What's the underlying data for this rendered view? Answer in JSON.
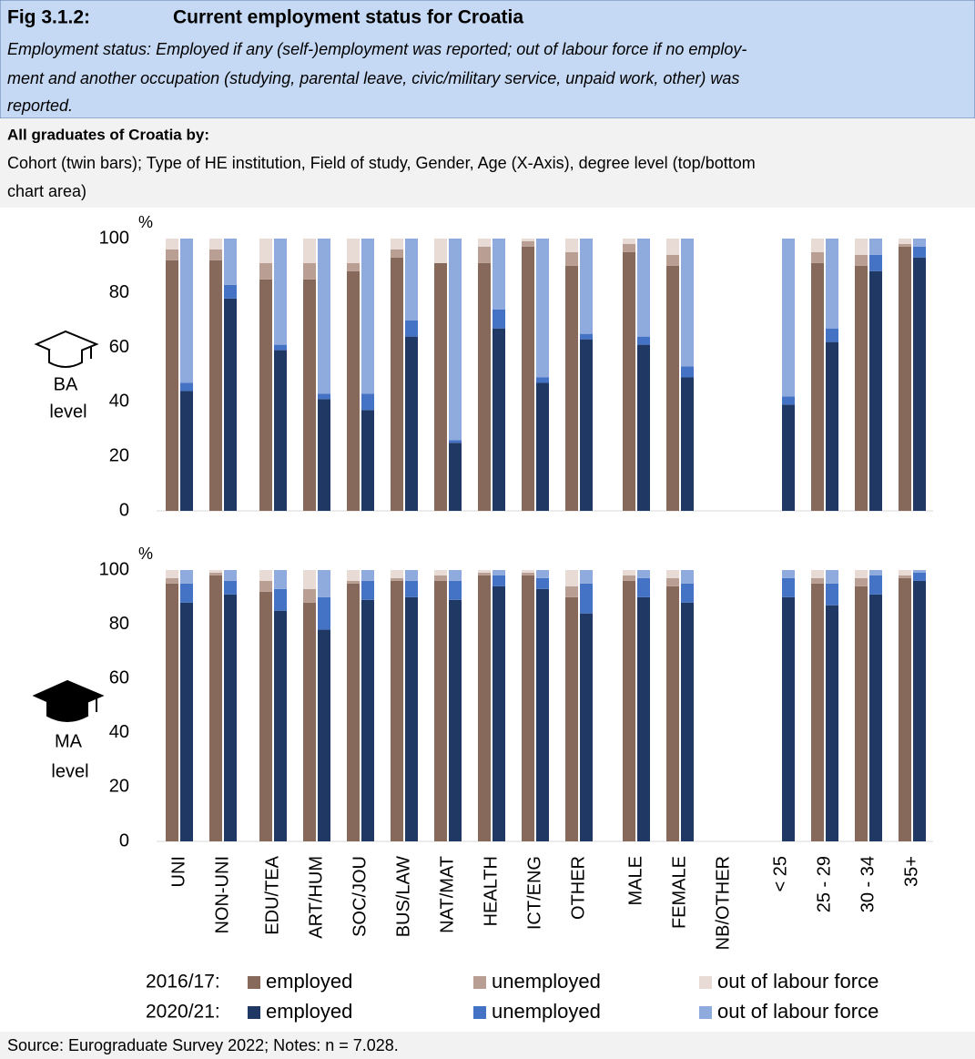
{
  "header": {
    "fig": "Fig 3.1.2:",
    "title": "Current employment status for Croatia",
    "subtitle_lines": [
      "Employment status: Employed if any (self-)employment was reported; out of labour force if no employ-",
      "ment and another occupation (studying, parental leave, civic/military service, unpaid work, other) was",
      "reported."
    ]
  },
  "description": {
    "heading": "All graduates of Croatia by:",
    "lines": [
      "Cohort (twin bars); Type of HE institution, Field of study, Gender, Age (X-Axis), degree level (top/bottom",
      "chart area)"
    ]
  },
  "chart_data": [
    {
      "type": "bar",
      "stacked": true,
      "label": [
        "BA",
        "level"
      ],
      "unit": "%",
      "ylim": [
        0,
        100
      ],
      "yticks": [
        0,
        20,
        40,
        60,
        80,
        100
      ],
      "cohorts": [
        {
          "label": "2016/17:",
          "series": [
            {
              "name": "employed",
              "color": "#87695c",
              "values": [
                92,
                92,
                85,
                85,
                88,
                93,
                91,
                91,
                97,
                90,
                95,
                90,
                null,
                null,
                91,
                90,
                97
              ]
            },
            {
              "name": "unemployed",
              "color": "#b99f93",
              "values": [
                4,
                4,
                6,
                6,
                3,
                3,
                0,
                6,
                2,
                5,
                3,
                4,
                null,
                null,
                4,
                4,
                1
              ]
            },
            {
              "name": "out of labour force",
              "color": "#e8dad5",
              "values": [
                4,
                4,
                9,
                9,
                9,
                4,
                9,
                3,
                1,
                5,
                2,
                6,
                null,
                null,
                5,
                6,
                2
              ]
            }
          ]
        },
        {
          "label": "2020/21:",
          "series": [
            {
              "name": "employed",
              "color": "#1f3864",
              "values": [
                44,
                78,
                59,
                41,
                37,
                64,
                25,
                67,
                47,
                63,
                61,
                49,
                null,
                39,
                62,
                88,
                93
              ]
            },
            {
              "name": "unemployed",
              "color": "#4472c4",
              "values": [
                3,
                5,
                2,
                2,
                6,
                6,
                1,
                7,
                2,
                2,
                3,
                4,
                null,
                3,
                5,
                6,
                4
              ]
            },
            {
              "name": "out of labour force",
              "color": "#8faadc",
              "values": [
                53,
                17,
                39,
                57,
                57,
                30,
                74,
                26,
                51,
                35,
                36,
                47,
                null,
                58,
                33,
                6,
                3
              ]
            }
          ]
        }
      ]
    },
    {
      "type": "bar",
      "stacked": true,
      "label": [
        "MA",
        "level"
      ],
      "unit": "%",
      "ylim": [
        0,
        100
      ],
      "yticks": [
        0,
        20,
        40,
        60,
        80,
        100
      ],
      "categories": [
        "UNI",
        "NON-UNI",
        "EDU/TEA",
        "ART/HUM",
        "SOC/JOU",
        "BUS/LAW",
        "NAT/MAT",
        "HEALTH",
        "ICT/ENG",
        "OTHER",
        "MALE",
        "FEMALE",
        "NB/OTHER",
        "< 25",
        "25 - 29",
        "30 - 34",
        "35+"
      ],
      "cohorts": [
        {
          "series": [
            {
              "color": "#87695c",
              "values": [
                95,
                98,
                92,
                88,
                95,
                96,
                96,
                98,
                98,
                90,
                96,
                94,
                null,
                null,
                95,
                94,
                97
              ]
            },
            {
              "color": "#b99f93",
              "values": [
                2,
                1,
                4,
                5,
                1,
                1,
                2,
                1,
                1,
                4,
                2,
                3,
                null,
                null,
                2,
                3,
                1
              ]
            },
            {
              "color": "#e8dad5",
              "values": [
                3,
                1,
                4,
                7,
                4,
                3,
                2,
                1,
                1,
                6,
                2,
                3,
                null,
                null,
                3,
                3,
                2
              ]
            }
          ]
        },
        {
          "series": [
            {
              "color": "#1f3864",
              "values": [
                88,
                91,
                85,
                78,
                89,
                90,
                89,
                94,
                93,
                84,
                90,
                88,
                null,
                90,
                87,
                91,
                96
              ]
            },
            {
              "color": "#4472c4",
              "values": [
                7,
                5,
                8,
                12,
                7,
                6,
                7,
                4,
                4,
                11,
                7,
                7,
                null,
                7,
                8,
                7,
                3
              ]
            },
            {
              "color": "#8faadc",
              "values": [
                5,
                4,
                7,
                10,
                4,
                4,
                4,
                2,
                3,
                5,
                3,
                5,
                null,
                3,
                5,
                2,
                1
              ]
            }
          ]
        }
      ]
    }
  ],
  "footer": "Source: Eurograduate Survey 2022; Notes: n = 7.028."
}
